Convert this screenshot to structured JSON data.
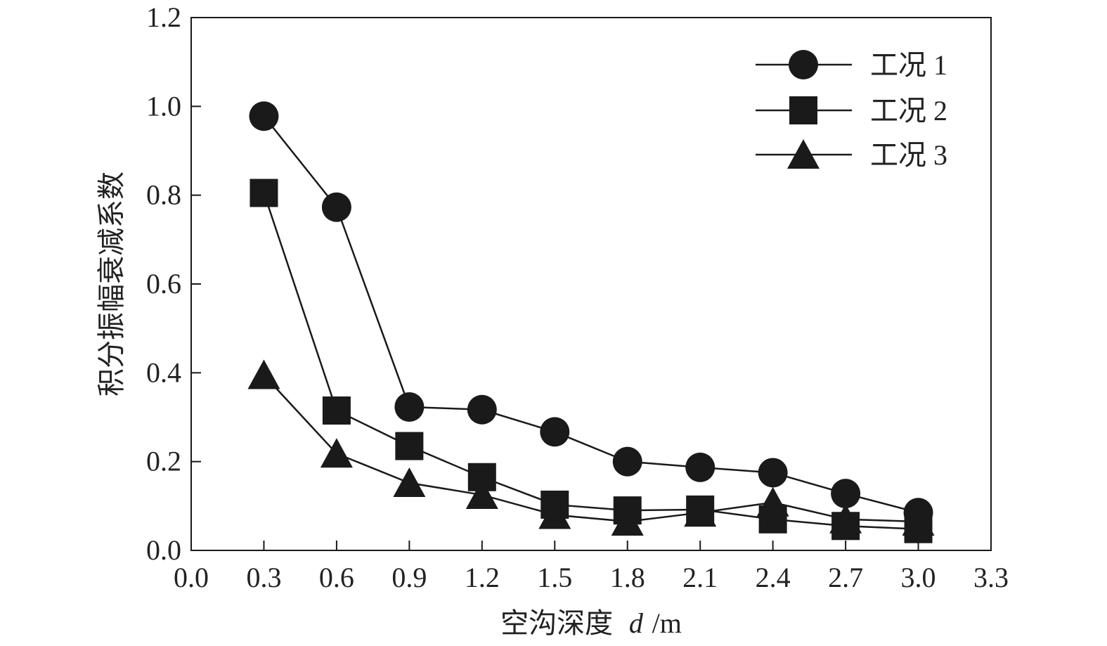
{
  "chart_data": {
    "type": "line",
    "title": "",
    "xlabel": "空沟深度",
    "xlabel_var": "d",
    "xlabel_unit": "/m",
    "ylabel": "积分振幅衰减系数",
    "xlim": [
      0.0,
      3.3
    ],
    "ylim": [
      0.0,
      1.2
    ],
    "xticks": [
      "0.0",
      "0.3",
      "0.6",
      "0.9",
      "1.2",
      "1.5",
      "1.8",
      "2.1",
      "2.4",
      "2.7",
      "3.0",
      "3.3"
    ],
    "yticks": [
      "0.0",
      "0.2",
      "0.4",
      "0.6",
      "0.8",
      "1.0",
      "1.2"
    ],
    "grid": false,
    "legend_position": "top-right",
    "x": [
      0.3,
      0.6,
      0.9,
      1.2,
      1.5,
      1.8,
      2.1,
      2.4,
      2.7,
      3.0
    ],
    "series": [
      {
        "name": "工况 1",
        "marker": "circle",
        "color": "#1a1a1a",
        "values": [
          0.978,
          0.773,
          0.323,
          0.317,
          0.267,
          0.2,
          0.187,
          0.175,
          0.128,
          0.085
        ]
      },
      {
        "name": "工况 2",
        "marker": "square",
        "color": "#1a1a1a",
        "values": [
          0.805,
          0.315,
          0.235,
          0.165,
          0.103,
          0.09,
          0.092,
          0.07,
          0.055,
          0.048
        ]
      },
      {
        "name": "工况 3",
        "marker": "triangle",
        "color": "#1a1a1a",
        "values": [
          0.395,
          0.218,
          0.152,
          0.125,
          0.08,
          0.065,
          0.085,
          0.108,
          0.07,
          0.065
        ]
      }
    ]
  }
}
